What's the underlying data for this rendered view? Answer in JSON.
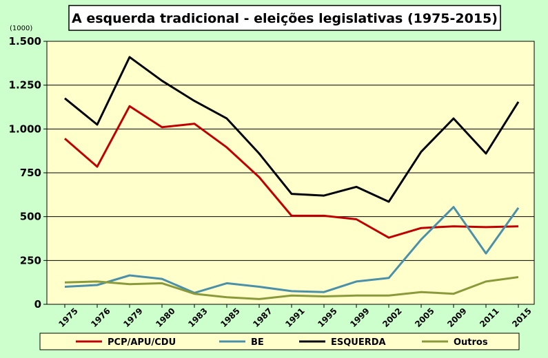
{
  "chart_data": {
    "type": "line",
    "title": "A esquerda tradicional - eleições legislativas (1975-2015)",
    "y_unit_label": "(1000)",
    "categories": [
      "1975",
      "1976",
      "1979",
      "1980",
      "1983",
      "1985",
      "1987",
      "1991",
      "1995",
      "1999",
      "2002",
      "2005",
      "2009",
      "2011",
      "2015"
    ],
    "ylim": [
      0,
      1500
    ],
    "yticks": [
      0,
      250,
      500,
      750,
      1000,
      1250,
      1500
    ],
    "ytick_labels": [
      "0",
      "250",
      "500",
      "750",
      "1.000",
      "1.250",
      "1.500"
    ],
    "grid": true,
    "legend_position": "bottom",
    "series": [
      {
        "name": "PCP/APU/CDU",
        "color": "#c00000",
        "values": [
          945,
          785,
          1130,
          1010,
          1030,
          895,
          725,
          505,
          505,
          485,
          380,
          435,
          445,
          440,
          445
        ]
      },
      {
        "name": "BE",
        "color": "#4a90a8",
        "values": [
          100,
          110,
          165,
          145,
          65,
          120,
          100,
          75,
          70,
          130,
          150,
          370,
          555,
          290,
          550
        ]
      },
      {
        "name": "ESQUERDA",
        "color": "#000000",
        "values": [
          1175,
          1025,
          1410,
          1275,
          1160,
          1060,
          860,
          630,
          620,
          670,
          585,
          870,
          1060,
          860,
          1155
        ]
      },
      {
        "name": "Outros",
        "color": "#8a9a3a",
        "values": [
          125,
          130,
          115,
          120,
          60,
          40,
          30,
          50,
          45,
          50,
          50,
          70,
          60,
          130,
          155
        ]
      }
    ],
    "colors": {
      "plot_background": "#ffffcc",
      "page_background": "#ccffcc"
    }
  }
}
